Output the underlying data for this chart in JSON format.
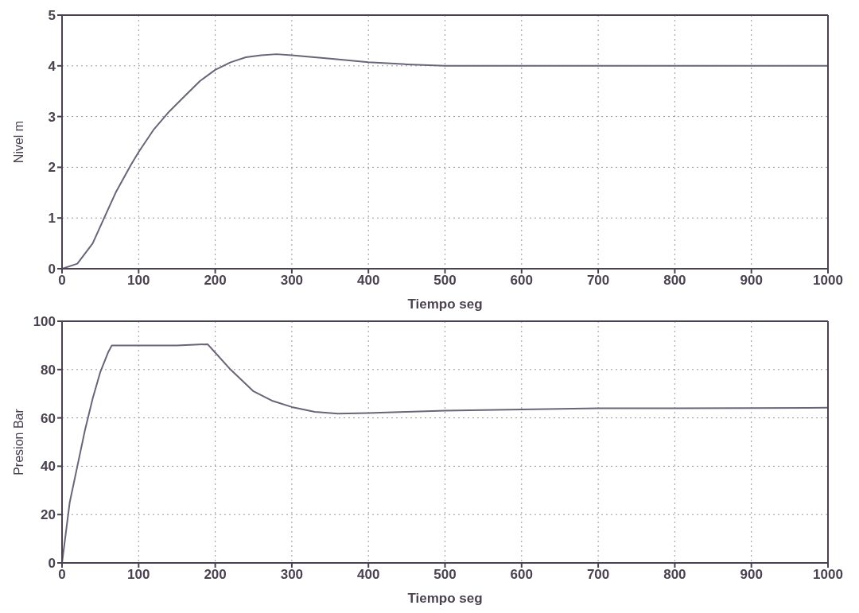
{
  "chart_data": [
    {
      "type": "line",
      "xlabel": "Tiempo seg",
      "ylabel": "Nivel m",
      "xlim": [
        0,
        1000
      ],
      "ylim": [
        0,
        5
      ],
      "xticks": [
        0,
        100,
        200,
        300,
        400,
        500,
        600,
        700,
        800,
        900,
        1000
      ],
      "yticks": [
        0,
        1,
        2,
        3,
        4,
        5
      ],
      "grid": true,
      "line_style": "solid",
      "marker": "none",
      "x": [
        0,
        20,
        40,
        55,
        70,
        90,
        100,
        120,
        140,
        160,
        180,
        200,
        220,
        240,
        260,
        280,
        300,
        350,
        400,
        450,
        500,
        600,
        700,
        800,
        900,
        1000
      ],
      "series": [
        {
          "color": "#6b6478",
          "values": [
            0,
            0.1,
            0.5,
            1.0,
            1.5,
            2.05,
            2.3,
            2.75,
            3.1,
            3.4,
            3.7,
            3.92,
            4.07,
            4.17,
            4.21,
            4.23,
            4.21,
            4.14,
            4.07,
            4.03,
            4.0,
            4.0,
            4.0,
            4.0,
            4.0,
            4.0
          ]
        }
      ]
    },
    {
      "type": "line",
      "xlabel": "Tiempo seg",
      "ylabel": "Presion Bar",
      "xlim": [
        0,
        1000
      ],
      "ylim": [
        0,
        100
      ],
      "xticks": [
        0,
        100,
        200,
        300,
        400,
        500,
        600,
        700,
        800,
        900,
        1000
      ],
      "yticks": [
        0,
        20,
        40,
        60,
        80,
        100
      ],
      "grid": true,
      "line_style": "solid",
      "marker": "none",
      "x": [
        0,
        10,
        20,
        30,
        40,
        50,
        60,
        65,
        100,
        150,
        190,
        200,
        220,
        250,
        275,
        300,
        330,
        360,
        400,
        450,
        500,
        600,
        700,
        800,
        900,
        1000
      ],
      "series": [
        {
          "color": "#6b6478",
          "values": [
            0,
            25,
            40,
            55,
            68,
            79,
            87,
            90,
            90,
            90,
            90.5,
            87,
            80,
            71,
            67,
            64.5,
            62.5,
            61.8,
            62,
            62.5,
            63,
            63.5,
            64,
            64,
            64.1,
            64.2
          ]
        }
      ]
    }
  ]
}
